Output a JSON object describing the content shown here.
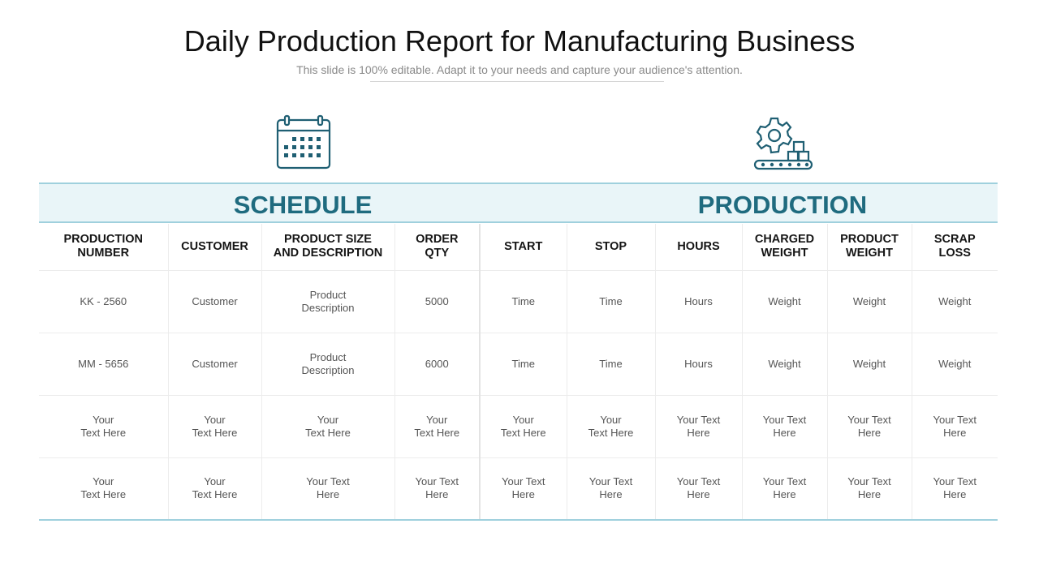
{
  "header": {
    "title": "Daily Production Report for Manufacturing Business",
    "subtitle": "This slide is 100% editable. Adapt it to your needs and capture your audience's attention."
  },
  "sections": {
    "schedule": {
      "label": "SCHEDULE",
      "icon": "calendar-icon"
    },
    "production": {
      "label": "PRODUCTION",
      "icon": "gear-conveyor-icon"
    }
  },
  "colors": {
    "accent": "#1f6b7f",
    "band_background": "#e9f5f8",
    "band_border": "#9fd0dd"
  },
  "table": {
    "headers": [
      "PRODUCTION\nNUMBER",
      "CUSTOMER",
      "PRODUCT SIZE\nAND DESCRIPTION",
      "ORDER\nQTY",
      "START",
      "STOP",
      "HOURS",
      "CHARGED\nWEIGHT",
      "PRODUCT\nWEIGHT",
      "SCRAP\nLOSS"
    ],
    "rows": [
      [
        "KK - 2560",
        "Customer",
        "Product\nDescription",
        "5000",
        "Time",
        "Time",
        "Hours",
        "Weight",
        "Weight",
        "Weight"
      ],
      [
        "MM - 5656",
        "Customer",
        "Product\nDescription",
        "6000",
        "Time",
        "Time",
        "Hours",
        "Weight",
        "Weight",
        "Weight"
      ],
      [
        "Your\nText Here",
        "Your\nText Here",
        "Your\nText Here",
        "Your\nText Here",
        "Your\nText Here",
        "Your\nText Here",
        "Your Text\nHere",
        "Your Text\nHere",
        "Your Text\nHere",
        "Your Text\nHere"
      ],
      [
        "Your\nText Here",
        "Your\nText Here",
        "Your Text\nHere",
        "Your Text\nHere",
        "Your Text\nHere",
        "Your Text\nHere",
        "Your Text\nHere",
        "Your Text\nHere",
        "Your Text\nHere",
        "Your Text\nHere"
      ]
    ]
  }
}
